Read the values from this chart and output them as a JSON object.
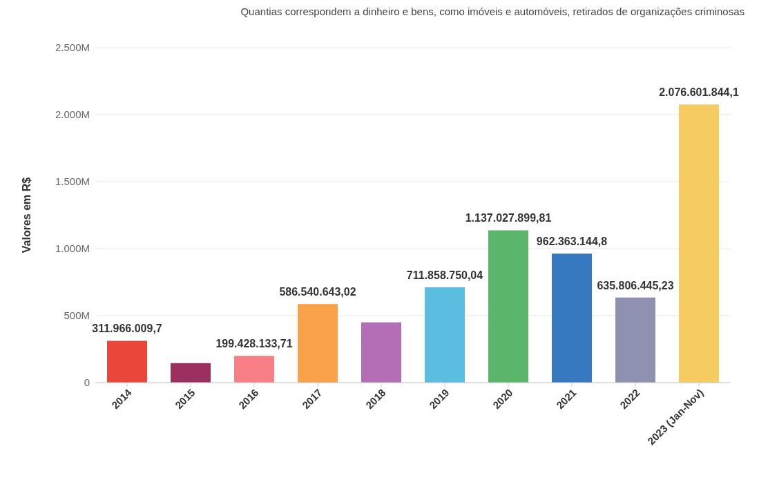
{
  "chart_data": {
    "type": "bar",
    "title": "Quantias correspondem a dinheiro e bens, como imóveis e automóveis, retirados de organizações criminosas",
    "ylabel": "Valores em R$",
    "categories": [
      "2014",
      "2015",
      "2016",
      "2017",
      "2018",
      "2019",
      "2020",
      "2021",
      "2022",
      "2023 (Jan-Nov)"
    ],
    "values": [
      311966009.7,
      145000000,
      199428133.71,
      586540643.02,
      450000000,
      711858750.04,
      1137027899.81,
      962363144.8,
      635806445.23,
      2076601844.1
    ],
    "value_labels": [
      "311.966.009,7",
      null,
      "199.428.133,71",
      "586.540.643,02",
      null,
      "711.858.750,04",
      "1.137.027.899,81",
      "962.363.144,8",
      "635.806.445,23",
      "2.076.601.844,1"
    ],
    "colors": [
      "#e8473a",
      "#9b3060",
      "#f77f85",
      "#f9a24a",
      "#b46eb5",
      "#5bbde0",
      "#5bb56a",
      "#3779c0",
      "#8e91b0",
      "#f6cc62"
    ],
    "ylim": [
      0,
      2500000000
    ],
    "yticks": [
      {
        "value": 0,
        "label": "0"
      },
      {
        "value": 500000000,
        "label": "500M"
      },
      {
        "value": 1000000000,
        "label": "1.000M"
      },
      {
        "value": 1500000000,
        "label": "1.500M"
      },
      {
        "value": 2000000000,
        "label": "2.000M"
      },
      {
        "value": 2500000000,
        "label": "2.500M"
      }
    ],
    "grid": "y"
  }
}
